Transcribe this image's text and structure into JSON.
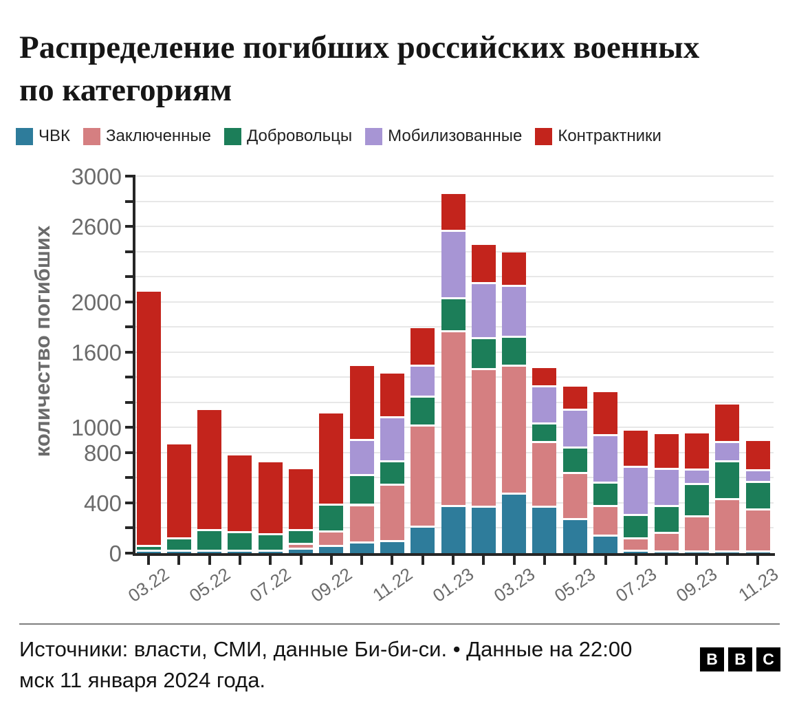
{
  "header": {
    "title": "Распределение погибших российских военных по категориям"
  },
  "chart_data": {
    "type": "bar",
    "stacked": true,
    "title": "Распределение погибших российских военных по категориям",
    "xlabel": "",
    "ylabel": "количество погибших",
    "ylim": [
      0,
      3000
    ],
    "grid": true,
    "y_tick_step": 200,
    "y_labeled_ticks": [
      0,
      400,
      800,
      1000,
      1600,
      2000,
      2600,
      3000
    ],
    "legend_position": "top",
    "categories": [
      "03.22",
      "04.22",
      "05.22",
      "06.22",
      "07.22",
      "08.22",
      "09.22",
      "10.22",
      "11.22",
      "12.22",
      "01.23",
      "02.23",
      "03.23",
      "04.23",
      "05.23",
      "06.23",
      "07.23",
      "08.23",
      "09.23",
      "10.23",
      "11.23"
    ],
    "x_labeled_every": 2,
    "series": [
      {
        "name": "ЧВК",
        "color": "#2e7c9b",
        "values": [
          10,
          10,
          10,
          10,
          10,
          30,
          50,
          75,
          90,
          205,
          365,
          360,
          465,
          360,
          265,
          130,
          10,
          5,
          5,
          5,
          5
        ]
      },
      {
        "name": "Заключенные",
        "color": "#d57f81",
        "values": [
          0,
          0,
          0,
          0,
          0,
          35,
          115,
          300,
          445,
          805,
          1390,
          1095,
          1020,
          515,
          365,
          235,
          100,
          150,
          280,
          415,
          335
        ]
      },
      {
        "name": "Добровольцы",
        "color": "#1c7e59",
        "values": [
          40,
          100,
          165,
          150,
          135,
          110,
          215,
          240,
          190,
          225,
          265,
          250,
          230,
          150,
          200,
          190,
          185,
          210,
          255,
          300,
          220
        ]
      },
      {
        "name": "Мобилизованные",
        "color": "#a795d4",
        "values": [
          0,
          0,
          0,
          0,
          0,
          0,
          0,
          275,
          350,
          250,
          535,
          435,
          405,
          295,
          305,
          375,
          385,
          300,
          115,
          155,
          90
        ]
      },
      {
        "name": "Контрактники",
        "color": "#c3241c",
        "values": [
          2030,
          755,
          965,
          620,
          575,
          495,
          730,
          600,
          355,
          305,
          305,
          310,
          270,
          155,
          190,
          350,
          295,
          280,
          295,
          310,
          240
        ]
      }
    ]
  },
  "footer": {
    "source_text": "Источники: власти, СМИ, данные Би-би-си. • Данные на 22:00 мск 11 января 2024 года.",
    "logo_letters": [
      "B",
      "B",
      "C"
    ]
  }
}
